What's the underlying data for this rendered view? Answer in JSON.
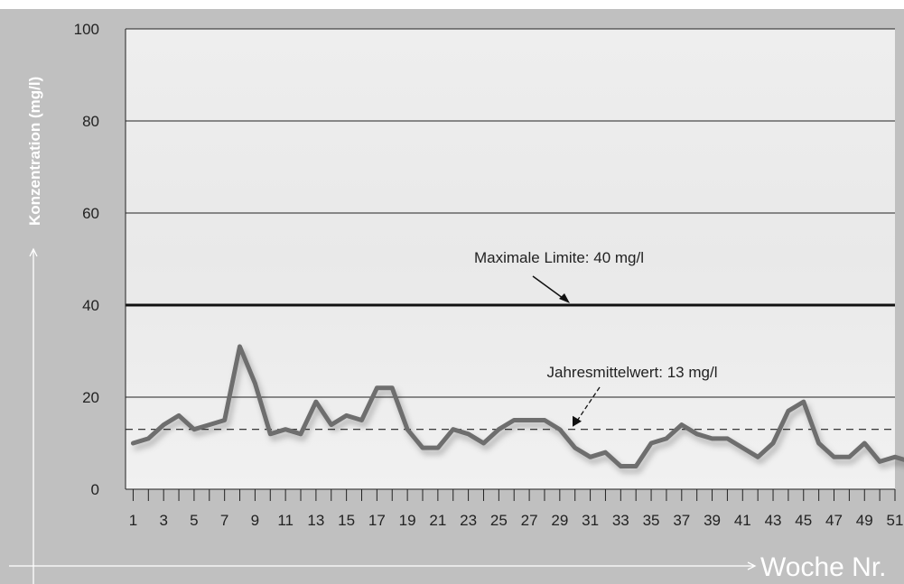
{
  "chart_data": {
    "type": "line",
    "xlabel": "Woche Nr.",
    "ylabel": "Konzentration (mg/l)",
    "ylim": [
      0,
      100
    ],
    "xlim": [
      1,
      52
    ],
    "yticks": [
      "0",
      "20",
      "40",
      "60",
      "80",
      "100"
    ],
    "xticks": [
      "1",
      "3",
      "5",
      "7",
      "9",
      "11",
      "13",
      "15",
      "17",
      "19",
      "21",
      "23",
      "25",
      "27",
      "29",
      "31",
      "33",
      "35",
      "37",
      "39",
      "41",
      "43",
      "45",
      "47",
      "49",
      "51"
    ],
    "grid": true,
    "series": [
      {
        "values": [
          10,
          11,
          14,
          16,
          13,
          14,
          15,
          31,
          23,
          12,
          13,
          12,
          19,
          14,
          16,
          15,
          22,
          22,
          13,
          9,
          9,
          13,
          12,
          10,
          13,
          15,
          15,
          15,
          13,
          9,
          7,
          8,
          5,
          5,
          10,
          11,
          14,
          12,
          11,
          11,
          9,
          7,
          10,
          17,
          19,
          10,
          7,
          7,
          10,
          6,
          7,
          6
        ]
      }
    ],
    "reference_lines": [
      {
        "value": 40,
        "label": "Maximale Limite: 40 mg/l",
        "style": "solid"
      },
      {
        "value": 13,
        "label": "Jahresmittelwert: 13 mg/l",
        "style": "dashed"
      }
    ],
    "colors": {
      "frame": "#bdbdbd",
      "plot_bg": "#efefef",
      "series": "#6e6e6e",
      "grid": "#222222"
    }
  }
}
